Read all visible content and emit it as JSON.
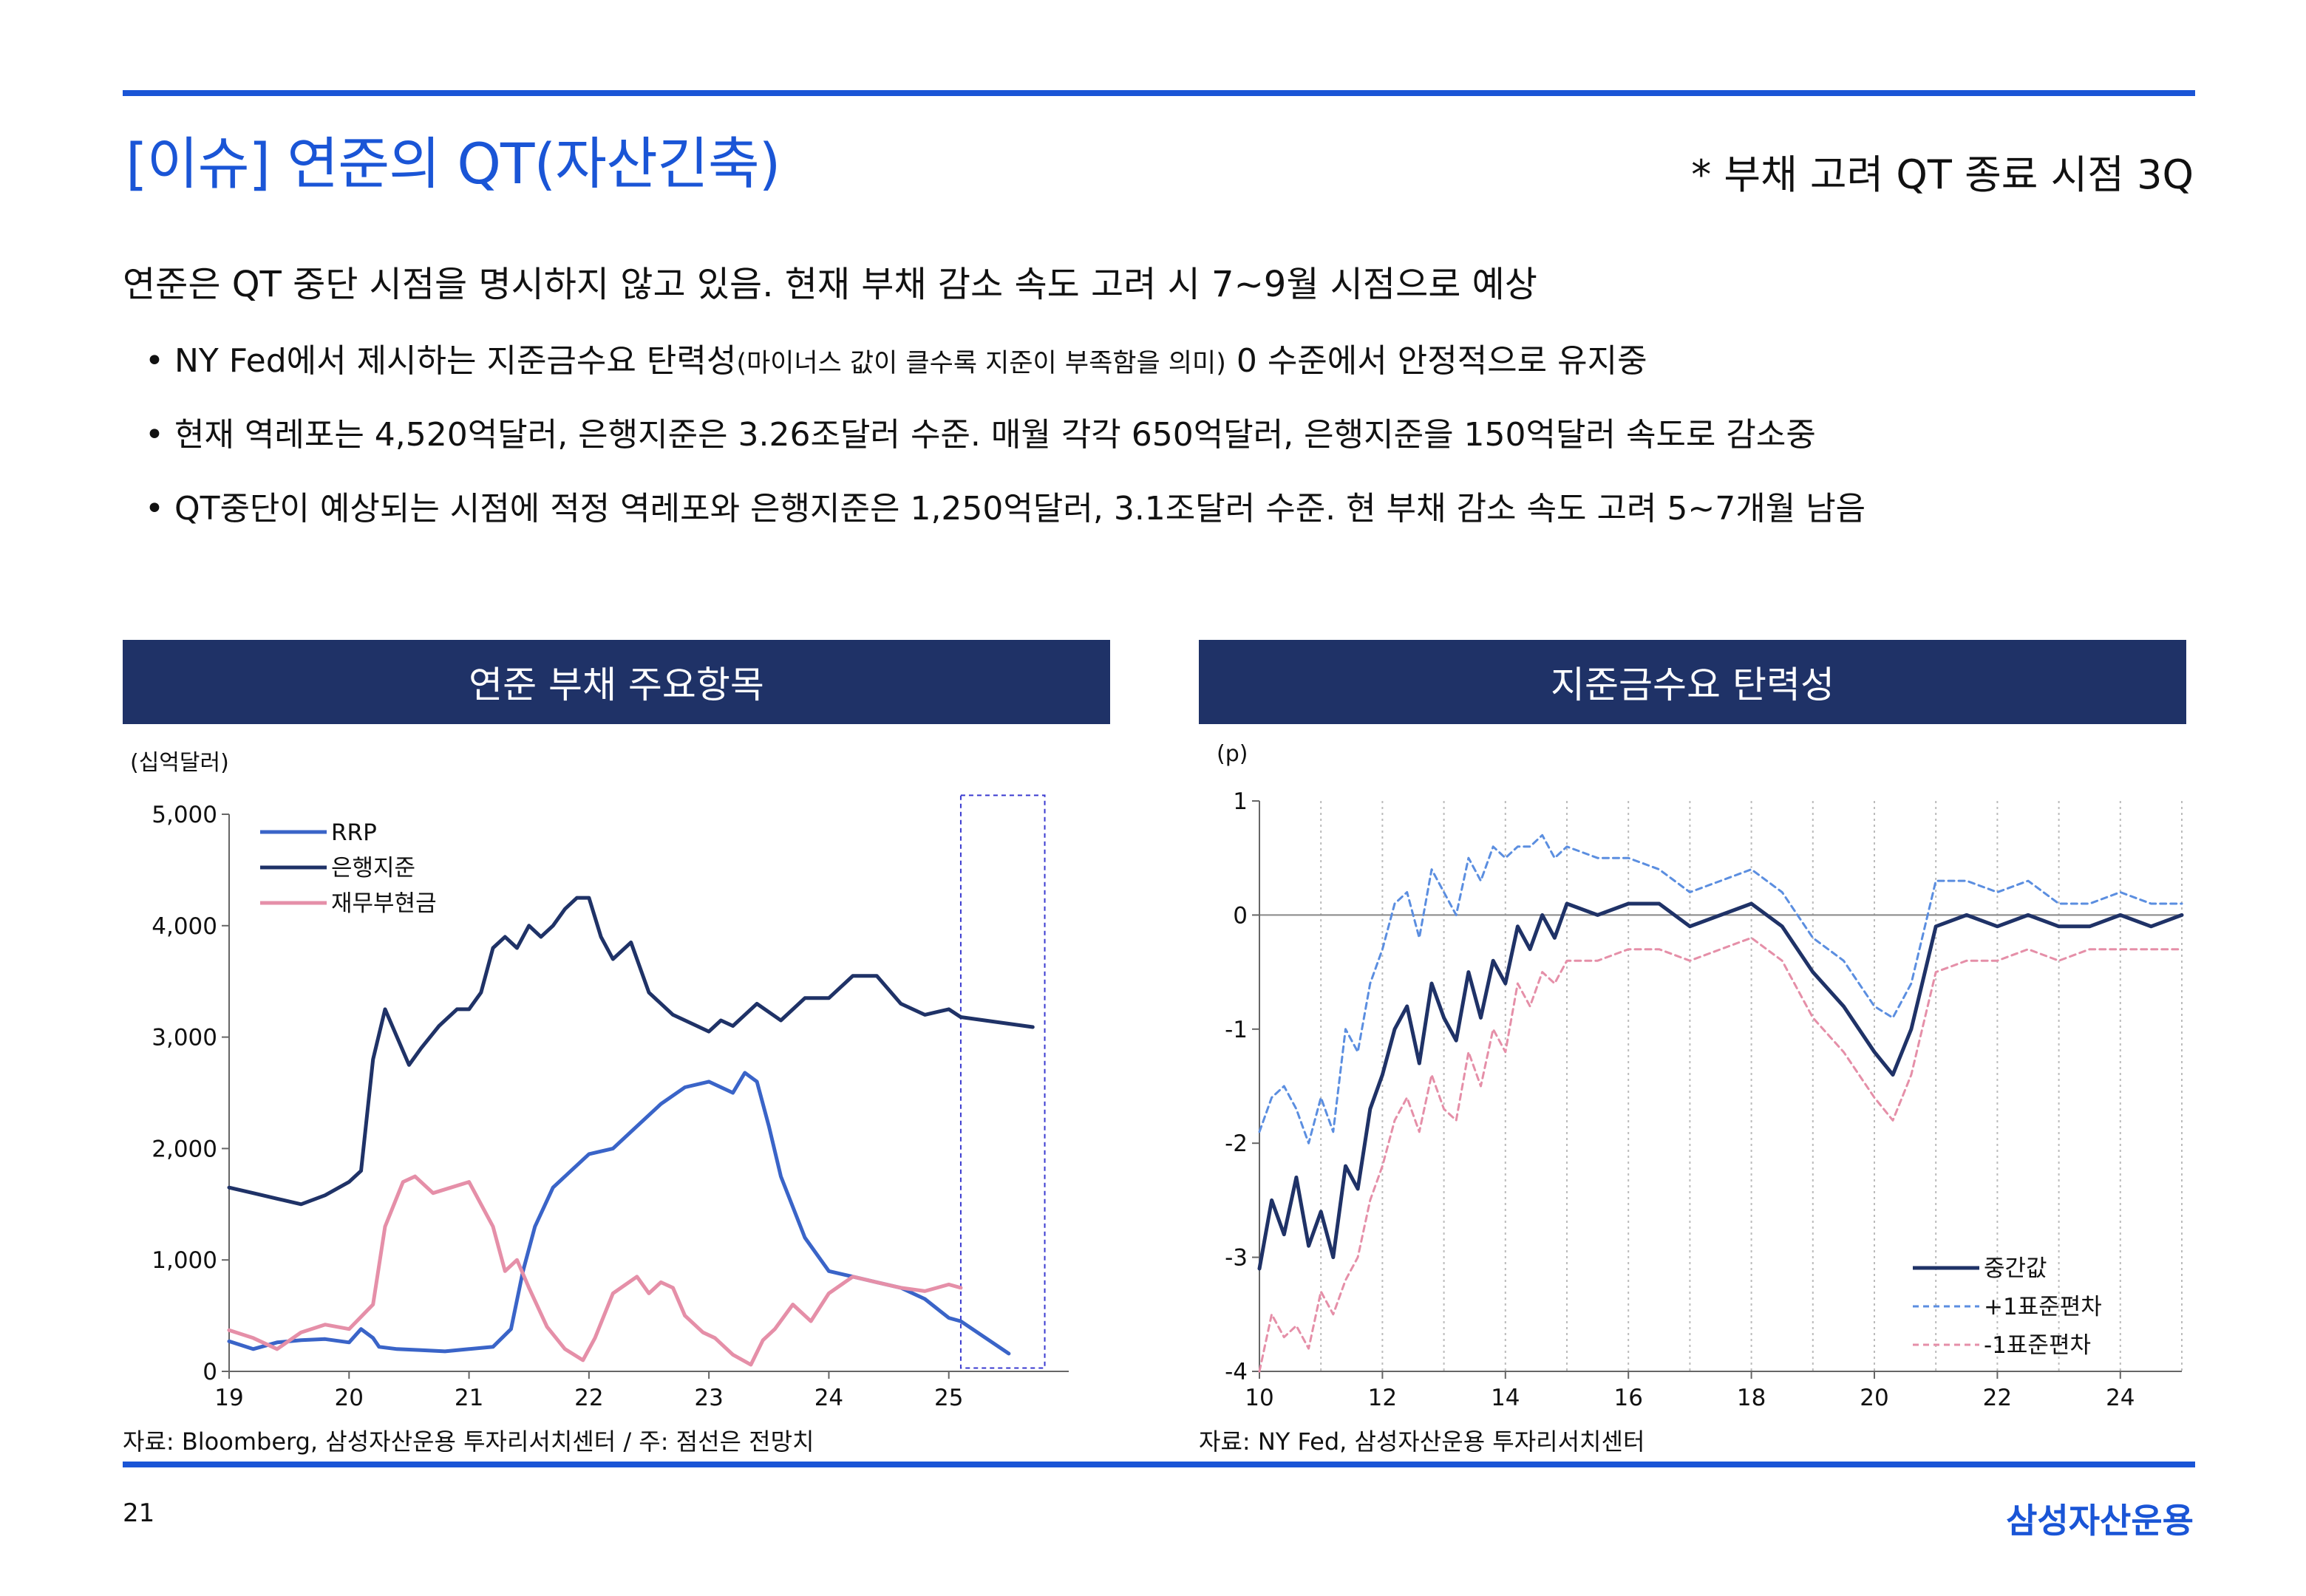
{
  "header": {
    "title": "[이슈] 연준의 QT(자산긴축)",
    "subtitle": "* 부채 고려 QT 종료 시점 3Q"
  },
  "summary": "연준은 QT 중단 시점을 명시하지 않고 있음. 현재 부채 감소 속도 고려 시 7~9월 시점으로 예상",
  "bullets": {
    "b1_pre": "• NY Fed에서 제시하는 지준금수요 탄력성",
    "b1_small": "(마이너스 값이 클수록 지준이 부족함을 의미)",
    "b1_post": " 0 수준에서 안정적으로 유지중",
    "b2": "• 현재 역레포는 4,520억달러, 은행지준은 3.26조달러 수준. 매월 각각 650억달러, 은행지준을 150억달러 속도로 감소중",
    "b3": "• QT중단이 예상되는 시점에 적정 역레포와 은행지준은 1,250억달러, 3.1조달러 수준. 현 부채 감소 속도 고려 5~7개월 남음"
  },
  "left_panel": {
    "title": "연준 부채 주요항목",
    "source": "자료: Bloomberg, 삼성자산운용 투자리서치센터 / 주: 점선은 전망치"
  },
  "right_panel": {
    "title": "지준금수요 탄력성",
    "source": "자료: NY Fed, 삼성자산운용 투자리서치센터"
  },
  "footer": {
    "page_number": "21",
    "company": "삼성자산운용"
  },
  "colors": {
    "accent": "#1a55d6",
    "header_bg": "#1f3267",
    "rrp": "#3a64c8",
    "reserves": "#1f3267",
    "tga": "#e58fa8",
    "plus_sd": "#5b8ee0",
    "minus_sd": "#e58fa8"
  },
  "chart_data": [
    {
      "type": "line",
      "title": "연준 부채 주요항목",
      "ylabel": "(십억달러)",
      "ylim": [
        0,
        5000
      ],
      "yticks": [
        "0",
        "1,000",
        "2,000",
        "3,000",
        "4,000",
        "5,000"
      ],
      "yticks_values": [
        0,
        1000,
        2000,
        3000,
        4000,
        5000
      ],
      "xlim": [
        19,
        26
      ],
      "xticks": [
        "19",
        "20",
        "21",
        "22",
        "23",
        "24",
        "25"
      ],
      "xticks_values": [
        19,
        20,
        21,
        22,
        23,
        24,
        25
      ],
      "legend_position": "top-left",
      "forecast_box": {
        "x": [
          25.1,
          25.8
        ],
        "y": [
          30,
          5170
        ]
      },
      "series": [
        {
          "name": "RRP",
          "x": [
            19.0,
            19.2,
            19.4,
            19.6,
            19.8,
            20.0,
            20.1,
            20.2,
            20.25,
            20.4,
            20.6,
            20.8,
            21.0,
            21.2,
            21.35,
            21.45,
            21.55,
            21.7,
            21.85,
            22.0,
            22.2,
            22.4,
            22.6,
            22.8,
            23.0,
            23.2,
            23.3,
            23.4,
            23.5,
            23.6,
            23.8,
            24.0,
            24.2,
            24.4,
            24.6,
            24.8,
            25.0,
            25.1
          ],
          "y": [
            270,
            200,
            260,
            280,
            290,
            260,
            380,
            300,
            220,
            200,
            190,
            180,
            200,
            220,
            380,
            900,
            1300,
            1650,
            1800,
            1950,
            2000,
            2200,
            2400,
            2550,
            2600,
            2500,
            2680,
            2600,
            2200,
            1750,
            1200,
            900,
            850,
            800,
            750,
            650,
            480,
            450
          ]
        },
        {
          "name": "RRP 전망치",
          "x": [
            25.1,
            25.5
          ],
          "y": [
            450,
            160
          ]
        },
        {
          "name": "은행지준",
          "x": [
            19.0,
            19.2,
            19.4,
            19.6,
            19.8,
            20.0,
            20.1,
            20.2,
            20.3,
            20.4,
            20.5,
            20.6,
            20.75,
            20.9,
            21.0,
            21.1,
            21.2,
            21.3,
            21.4,
            21.5,
            21.6,
            21.7,
            21.8,
            21.9,
            22.0,
            22.1,
            22.2,
            22.35,
            22.5,
            22.7,
            22.9,
            23.0,
            23.1,
            23.2,
            23.4,
            23.6,
            23.8,
            24.0,
            24.2,
            24.4,
            24.6,
            24.8,
            25.0,
            25.1
          ],
          "y": [
            1650,
            1600,
            1550,
            1500,
            1580,
            1700,
            1800,
            2800,
            3250,
            3000,
            2750,
            2900,
            3100,
            3250,
            3250,
            3400,
            3800,
            3900,
            3800,
            4000,
            3900,
            4000,
            4150,
            4250,
            4250,
            3900,
            3700,
            3850,
            3400,
            3200,
            3100,
            3050,
            3150,
            3100,
            3300,
            3150,
            3350,
            3350,
            3550,
            3550,
            3300,
            3200,
            3250,
            3180
          ]
        },
        {
          "name": "은행지준 전망치",
          "x": [
            25.1,
            25.7
          ],
          "y": [
            3180,
            3090
          ]
        },
        {
          "name": "재무부현금",
          "x": [
            19.0,
            19.2,
            19.4,
            19.6,
            19.8,
            20.0,
            20.2,
            20.3,
            20.45,
            20.55,
            20.7,
            20.85,
            21.0,
            21.1,
            21.2,
            21.3,
            21.4,
            21.5,
            21.65,
            21.8,
            21.95,
            22.05,
            22.2,
            22.4,
            22.5,
            22.6,
            22.7,
            22.8,
            22.95,
            23.05,
            23.2,
            23.35,
            23.45,
            23.55,
            23.7,
            23.85,
            24.0,
            24.2,
            24.4,
            24.6,
            24.8,
            25.0,
            25.1
          ],
          "y": [
            370,
            300,
            200,
            350,
            420,
            380,
            600,
            1300,
            1700,
            1750,
            1600,
            1650,
            1700,
            1500,
            1300,
            900,
            1000,
            750,
            400,
            200,
            100,
            300,
            700,
            850,
            700,
            800,
            750,
            500,
            350,
            300,
            150,
            60,
            280,
            380,
            600,
            450,
            700,
            850,
            800,
            750,
            720,
            780,
            750
          ]
        }
      ]
    },
    {
      "type": "line",
      "title": "지준금수요 탄력성",
      "ylabel": "(p)",
      "ylim": [
        -4,
        1
      ],
      "yticks": [
        "-4",
        "-3",
        "-2",
        "-1",
        "0",
        "1"
      ],
      "yticks_values": [
        -4,
        -3,
        -2,
        -1,
        0,
        1
      ],
      "xlim": [
        10,
        25
      ],
      "xticks": [
        "10",
        "12",
        "14",
        "16",
        "18",
        "20",
        "22",
        "24"
      ],
      "xticks_values": [
        10,
        12,
        14,
        16,
        18,
        20,
        22,
        24
      ],
      "grid": true,
      "legend_position": "bottom-right",
      "series": [
        {
          "name": "중간값",
          "x": [
            10.0,
            10.2,
            10.4,
            10.6,
            10.8,
            11.0,
            11.2,
            11.4,
            11.6,
            11.8,
            12.0,
            12.2,
            12.4,
            12.6,
            12.8,
            13.0,
            13.2,
            13.4,
            13.6,
            13.8,
            14.0,
            14.2,
            14.4,
            14.6,
            14.8,
            15.0,
            15.5,
            16.0,
            16.5,
            17.0,
            17.5,
            18.0,
            18.5,
            19.0,
            19.5,
            20.0,
            20.3,
            20.6,
            21.0,
            21.5,
            22.0,
            22.5,
            23.0,
            23.5,
            24.0,
            24.5,
            25.0
          ],
          "y": [
            -3.1,
            -2.5,
            -2.8,
            -2.3,
            -2.9,
            -2.6,
            -3.0,
            -2.2,
            -2.4,
            -1.7,
            -1.4,
            -1.0,
            -0.8,
            -1.3,
            -0.6,
            -0.9,
            -1.1,
            -0.5,
            -0.9,
            -0.4,
            -0.6,
            -0.1,
            -0.3,
            0.0,
            -0.2,
            0.1,
            0.0,
            0.1,
            0.1,
            -0.1,
            0.0,
            0.1,
            -0.1,
            -0.5,
            -0.8,
            -1.2,
            -1.4,
            -1.0,
            -0.1,
            0.0,
            -0.1,
            0.0,
            -0.1,
            -0.1,
            0.0,
            -0.1,
            0.0
          ]
        },
        {
          "name": "+1표준편차",
          "x": [
            10.0,
            10.2,
            10.4,
            10.6,
            10.8,
            11.0,
            11.2,
            11.4,
            11.6,
            11.8,
            12.0,
            12.2,
            12.4,
            12.6,
            12.8,
            13.0,
            13.2,
            13.4,
            13.6,
            13.8,
            14.0,
            14.2,
            14.4,
            14.6,
            14.8,
            15.0,
            15.5,
            16.0,
            16.5,
            17.0,
            17.5,
            18.0,
            18.5,
            19.0,
            19.5,
            20.0,
            20.3,
            20.6,
            21.0,
            21.5,
            22.0,
            22.5,
            23.0,
            23.5,
            24.0,
            24.5,
            25.0
          ],
          "y": [
            -1.9,
            -1.6,
            -1.5,
            -1.7,
            -2.0,
            -1.6,
            -1.9,
            -1.0,
            -1.2,
            -0.6,
            -0.3,
            0.1,
            0.2,
            -0.2,
            0.4,
            0.2,
            0.0,
            0.5,
            0.3,
            0.6,
            0.5,
            0.6,
            0.6,
            0.7,
            0.5,
            0.6,
            0.5,
            0.5,
            0.4,
            0.2,
            0.3,
            0.4,
            0.2,
            -0.2,
            -0.4,
            -0.8,
            -0.9,
            -0.6,
            0.3,
            0.3,
            0.2,
            0.3,
            0.1,
            0.1,
            0.2,
            0.1,
            0.1
          ]
        },
        {
          "name": "-1표준편차",
          "x": [
            10.0,
            10.2,
            10.4,
            10.6,
            10.8,
            11.0,
            11.2,
            11.4,
            11.6,
            11.8,
            12.0,
            12.2,
            12.4,
            12.6,
            12.8,
            13.0,
            13.2,
            13.4,
            13.6,
            13.8,
            14.0,
            14.2,
            14.4,
            14.6,
            14.8,
            15.0,
            15.5,
            16.0,
            16.5,
            17.0,
            17.5,
            18.0,
            18.5,
            19.0,
            19.5,
            20.0,
            20.3,
            20.6,
            21.0,
            21.5,
            22.0,
            22.5,
            23.0,
            23.5,
            24.0,
            24.5,
            25.0
          ],
          "y": [
            -4.0,
            -3.5,
            -3.7,
            -3.6,
            -3.8,
            -3.3,
            -3.5,
            -3.2,
            -3.0,
            -2.5,
            -2.2,
            -1.8,
            -1.6,
            -1.9,
            -1.4,
            -1.7,
            -1.8,
            -1.2,
            -1.5,
            -1.0,
            -1.2,
            -0.6,
            -0.8,
            -0.5,
            -0.6,
            -0.4,
            -0.4,
            -0.3,
            -0.3,
            -0.4,
            -0.3,
            -0.2,
            -0.4,
            -0.9,
            -1.2,
            -1.6,
            -1.8,
            -1.4,
            -0.5,
            -0.4,
            -0.4,
            -0.3,
            -0.4,
            -0.3,
            -0.3,
            -0.3,
            -0.3
          ]
        }
      ]
    }
  ]
}
